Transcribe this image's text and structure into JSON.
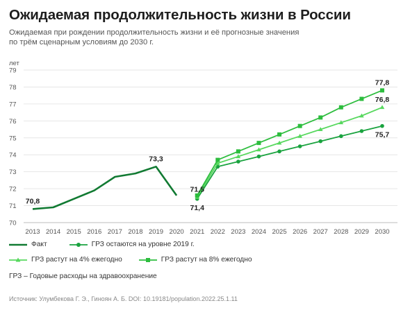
{
  "title": "Ожидаемая продолжительность жизни в России",
  "subtitle_line1": "Ожидаемая при рождении продолжительность жизни и её прогнозные значения",
  "subtitle_line2": "по трём сценарным условиям до 2030 г.",
  "note": "ГРЗ – Годовые расходы на здравоохранение",
  "source": "Источник: Улумбекова Г. Э., Гиноян А. Б. DOI: 10.19181/population.2022.25.1.11",
  "colors": {
    "fact": "#117a32",
    "scenario_2019": "#1aa33f",
    "scenario_4": "#57d85e",
    "scenario_8": "#2dbd3e",
    "grid": "#e6e6e6"
  },
  "chart_data": {
    "type": "line",
    "yunit": "лет",
    "ylim": [
      70,
      79
    ],
    "yticks": [
      70,
      71,
      72,
      73,
      74,
      75,
      76,
      77,
      78,
      79
    ],
    "xticks": [
      2013,
      2014,
      2015,
      2016,
      2017,
      2018,
      2019,
      2020,
      2021,
      2022,
      2023,
      2024,
      2025,
      2026,
      2027,
      2028,
      2029,
      2030
    ],
    "grid": "horizontal",
    "legend_position": "bottom",
    "series": [
      {
        "name": "Факт",
        "marker": "none",
        "x": [
          2013,
          2014,
          2015,
          2016,
          2017,
          2018,
          2019,
          2020
        ],
        "values": [
          70.8,
          70.9,
          71.4,
          71.9,
          72.7,
          72.9,
          73.3,
          71.6
        ]
      },
      {
        "name": "ГРЗ остаются на уровне 2019 г.",
        "marker": "circle",
        "x": [
          2021,
          2022,
          2023,
          2024,
          2025,
          2026,
          2027,
          2028,
          2029,
          2030
        ],
        "values": [
          71.4,
          73.3,
          73.6,
          73.9,
          74.2,
          74.5,
          74.8,
          75.1,
          75.4,
          75.7
        ]
      },
      {
        "name": "ГРЗ растут на 4% ежегодно",
        "marker": "triangle",
        "x": [
          2021,
          2022,
          2023,
          2024,
          2025,
          2026,
          2027,
          2028,
          2029,
          2030
        ],
        "values": [
          71.5,
          73.5,
          73.9,
          74.3,
          74.7,
          75.1,
          75.5,
          75.9,
          76.3,
          76.8
        ]
      },
      {
        "name": "ГРЗ растут на 8% ежегодно",
        "marker": "square",
        "x": [
          2021,
          2022,
          2023,
          2024,
          2025,
          2026,
          2027,
          2028,
          2029,
          2030
        ],
        "values": [
          71.6,
          73.7,
          74.2,
          74.7,
          75.2,
          75.7,
          76.2,
          76.8,
          77.3,
          77.8
        ]
      }
    ],
    "annotations": [
      {
        "text": "70,8",
        "x": 2013,
        "y": 70.8,
        "pos": "above"
      },
      {
        "text": "73,3",
        "x": 2019,
        "y": 73.3,
        "pos": "above"
      },
      {
        "text": "71,5",
        "x": 2021,
        "y": 71.5,
        "pos": "above"
      },
      {
        "text": "71,4",
        "x": 2021,
        "y": 71.4,
        "pos": "below"
      },
      {
        "text": "77,8",
        "x": 2030,
        "y": 77.8,
        "pos": "above"
      },
      {
        "text": "76,8",
        "x": 2030,
        "y": 76.8,
        "pos": "above"
      },
      {
        "text": "75,7",
        "x": 2030,
        "y": 75.7,
        "pos": "below"
      }
    ]
  }
}
